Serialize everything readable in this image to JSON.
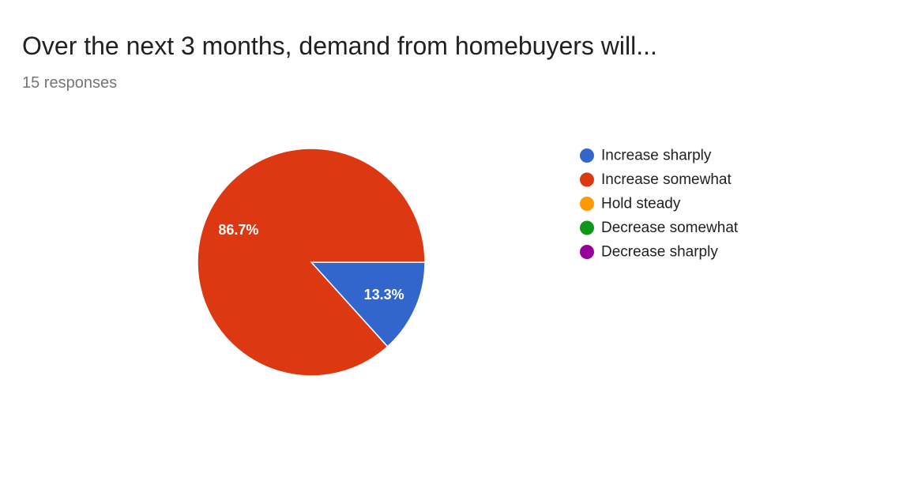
{
  "header": {
    "title": "Over the next 3 months, demand from homebuyers will...",
    "subtitle": "15 responses"
  },
  "chart_data": {
    "type": "pie",
    "title": "Over the next 3 months, demand from homebuyers will...",
    "categories": [
      "Increase sharply",
      "Increase somewhat",
      "Hold steady",
      "Decrease somewhat",
      "Decrease sharply"
    ],
    "values": [
      13.3,
      86.7,
      0,
      0,
      0
    ],
    "labels": [
      "13.3%",
      "86.7%",
      "",
      "",
      ""
    ],
    "colors": [
      "#3366cc",
      "#dc3912",
      "#ff9900",
      "#109618",
      "#990099"
    ],
    "legend_position": "right"
  }
}
